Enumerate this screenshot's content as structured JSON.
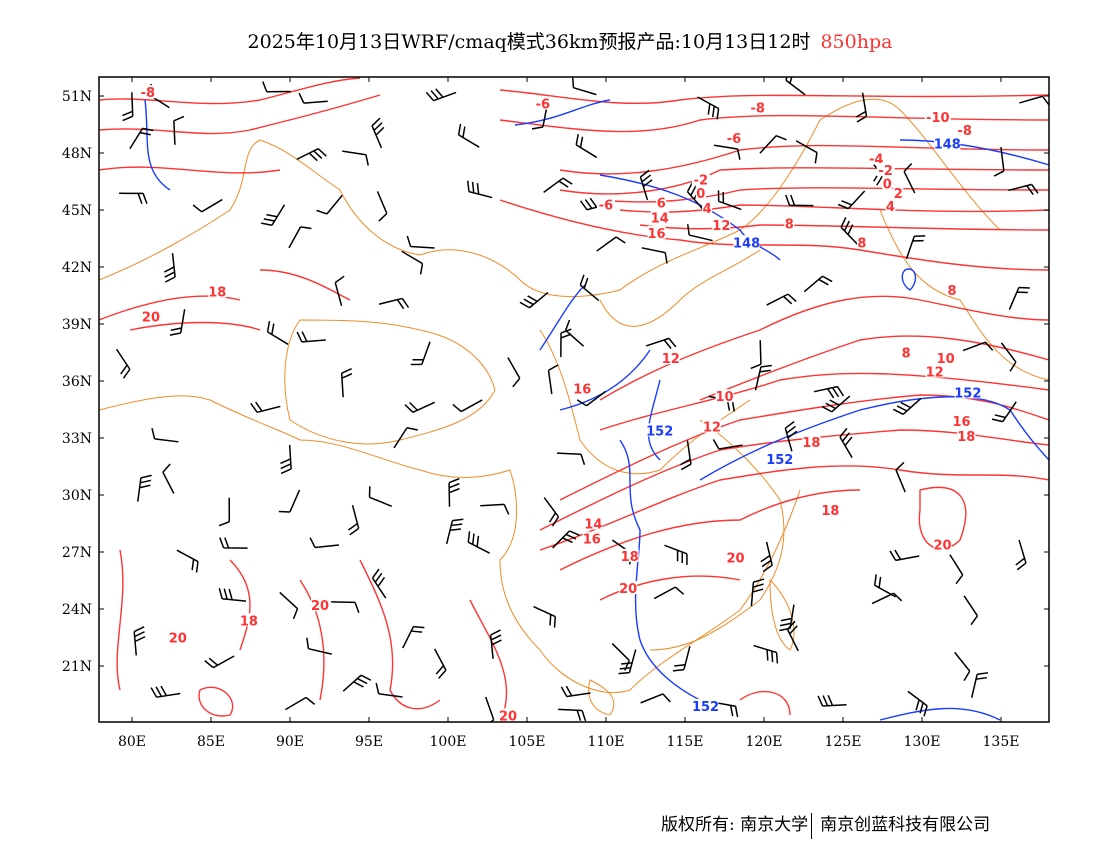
{
  "title": {
    "main": "2025年10月13日WRF/cmaq模式36km预报产品:10月13日12时",
    "level": "850hpa"
  },
  "colors": {
    "temperature": "#ff3333",
    "geopotential": "#1a3cff",
    "border": "#f08c28",
    "barb": "#000000"
  },
  "axes": {
    "lat_labels": [
      "51N",
      "48N",
      "45N",
      "42N",
      "39N",
      "36N",
      "33N",
      "30N",
      "27N",
      "24N",
      "21N"
    ],
    "lat_values": [
      51,
      48,
      45,
      42,
      39,
      36,
      33,
      30,
      27,
      24,
      21
    ],
    "lon_labels": [
      "80E",
      "85E",
      "90E",
      "95E",
      "100E",
      "105E",
      "110E",
      "115E",
      "120E",
      "125E",
      "130E",
      "135E"
    ],
    "lon_values": [
      80,
      85,
      90,
      95,
      100,
      105,
      110,
      115,
      120,
      125,
      130,
      135
    ]
  },
  "contour_labels": [
    {
      "t": "-8",
      "lon": 81.0,
      "lat": 51.2,
      "c": "r"
    },
    {
      "t": "-6",
      "lon": 106.0,
      "lat": 50.6,
      "c": "r"
    },
    {
      "t": "-8",
      "lon": 119.6,
      "lat": 50.4,
      "c": "r"
    },
    {
      "t": "-10",
      "lon": 131.0,
      "lat": 49.9,
      "c": "r"
    },
    {
      "t": "-8",
      "lon": 132.7,
      "lat": 49.2,
      "c": "r"
    },
    {
      "t": "148",
      "lon": 131.6,
      "lat": 48.5,
      "c": "b"
    },
    {
      "t": "-6",
      "lon": 118.1,
      "lat": 48.8,
      "c": "r"
    },
    {
      "t": "-4",
      "lon": 127.1,
      "lat": 47.7,
      "c": "r"
    },
    {
      "t": "-2",
      "lon": 127.7,
      "lat": 47.1,
      "c": "r"
    },
    {
      "t": "0",
      "lon": 127.8,
      "lat": 46.4,
      "c": "r"
    },
    {
      "t": "2",
      "lon": 128.5,
      "lat": 45.9,
      "c": "r"
    },
    {
      "t": "4",
      "lon": 128.0,
      "lat": 45.2,
      "c": "r"
    },
    {
      "t": "-2",
      "lon": 116.0,
      "lat": 46.6,
      "c": "r"
    },
    {
      "t": "0",
      "lon": 116.0,
      "lat": 45.9,
      "c": "r"
    },
    {
      "t": "4",
      "lon": 116.4,
      "lat": 45.1,
      "c": "r"
    },
    {
      "t": "6",
      "lon": 113.5,
      "lat": 45.4,
      "c": "r"
    },
    {
      "t": "-6",
      "lon": 110.0,
      "lat": 45.3,
      "c": "r"
    },
    {
      "t": "14",
      "lon": 113.4,
      "lat": 44.6,
      "c": "r"
    },
    {
      "t": "16",
      "lon": 113.2,
      "lat": 43.8,
      "c": "r"
    },
    {
      "t": "12",
      "lon": 117.3,
      "lat": 44.2,
      "c": "r"
    },
    {
      "t": "148",
      "lon": 118.9,
      "lat": 43.3,
      "c": "b"
    },
    {
      "t": "8",
      "lon": 121.6,
      "lat": 44.3,
      "c": "r"
    },
    {
      "t": "8",
      "lon": 126.2,
      "lat": 43.3,
      "c": "r"
    },
    {
      "t": "8",
      "lon": 131.9,
      "lat": 40.8,
      "c": "r"
    },
    {
      "t": "18",
      "lon": 85.4,
      "lat": 40.7,
      "c": "r"
    },
    {
      "t": "20",
      "lon": 81.2,
      "lat": 39.4,
      "c": "r"
    },
    {
      "t": "12",
      "lon": 114.1,
      "lat": 37.2,
      "c": "r"
    },
    {
      "t": "8",
      "lon": 129.0,
      "lat": 37.5,
      "c": "r"
    },
    {
      "t": "10",
      "lon": 131.5,
      "lat": 37.2,
      "c": "r"
    },
    {
      "t": "12",
      "lon": 130.8,
      "lat": 36.5,
      "c": "r"
    },
    {
      "t": "16",
      "lon": 108.5,
      "lat": 35.6,
      "c": "r"
    },
    {
      "t": "152",
      "lon": 132.9,
      "lat": 35.4,
      "c": "b"
    },
    {
      "t": "16",
      "lon": 132.5,
      "lat": 33.9,
      "c": "r"
    },
    {
      "t": "18",
      "lon": 132.8,
      "lat": 33.1,
      "c": "r"
    },
    {
      "t": "10",
      "lon": 117.5,
      "lat": 35.2,
      "c": "r"
    },
    {
      "t": "12",
      "lon": 116.7,
      "lat": 33.6,
      "c": "r"
    },
    {
      "t": "152",
      "lon": 113.4,
      "lat": 33.4,
      "c": "b"
    },
    {
      "t": "18",
      "lon": 123.0,
      "lat": 32.8,
      "c": "r"
    },
    {
      "t": "152",
      "lon": 121.0,
      "lat": 31.9,
      "c": "b"
    },
    {
      "t": "18",
      "lon": 124.2,
      "lat": 29.2,
      "c": "r"
    },
    {
      "t": "14",
      "lon": 109.2,
      "lat": 28.5,
      "c": "r"
    },
    {
      "t": "16",
      "lon": 109.1,
      "lat": 27.7,
      "c": "r"
    },
    {
      "t": "18",
      "lon": 111.5,
      "lat": 26.8,
      "c": "r"
    },
    {
      "t": "20",
      "lon": 118.2,
      "lat": 26.7,
      "c": "r"
    },
    {
      "t": "20",
      "lon": 111.4,
      "lat": 25.1,
      "c": "r"
    },
    {
      "t": "20",
      "lon": 131.3,
      "lat": 27.4,
      "c": "r"
    },
    {
      "t": "20",
      "lon": 91.9,
      "lat": 24.2,
      "c": "r"
    },
    {
      "t": "18",
      "lon": 87.4,
      "lat": 23.4,
      "c": "r"
    },
    {
      "t": "20",
      "lon": 82.9,
      "lat": 22.5,
      "c": "r"
    },
    {
      "t": "152",
      "lon": 116.3,
      "lat": 18.9,
      "c": "b"
    },
    {
      "t": "20",
      "lon": 103.8,
      "lat": 18.4,
      "c": "r"
    }
  ],
  "footer": {
    "copyright": "版权所有: 南京大学",
    "company": "南京创蓝科技有限公司"
  }
}
